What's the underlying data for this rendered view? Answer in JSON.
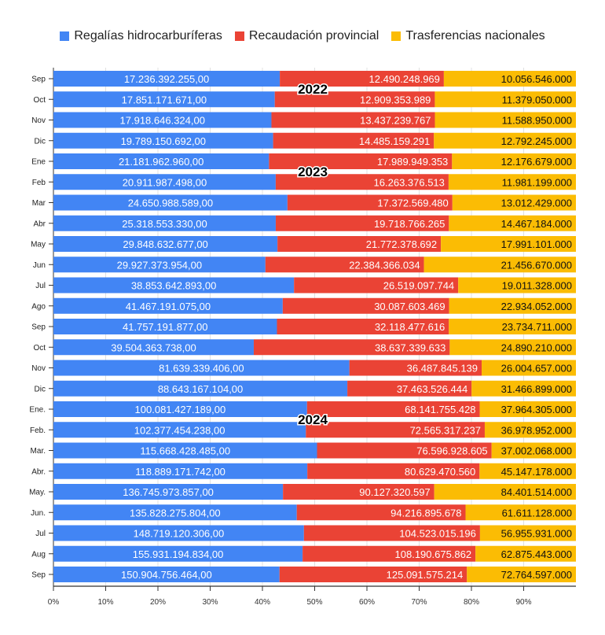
{
  "chart_data": {
    "type": "bar",
    "orientation": "horizontal",
    "stacking": "percent",
    "categories": [
      "Sep",
      "Oct",
      "Nov",
      "Dic",
      "Ene",
      "Feb",
      "Mar",
      "Abr",
      "May",
      "Jun",
      "Jul",
      "Ago",
      "Sep",
      "Oct",
      "Nov",
      "Dic",
      "Ene.",
      "Feb.",
      "Mar.",
      "Abr.",
      "May.",
      "Jun.",
      "Jul",
      "Aug",
      "Sep"
    ],
    "series": [
      {
        "name": "Regalías hidrocarburíferas",
        "color": "#4285f4",
        "label_suffix": ",00",
        "values": [
          17236392255,
          17851171671,
          17918646324,
          19789150692,
          21181962960,
          20911987498,
          24650988589,
          25318553330,
          29848632677,
          29927373954,
          38853642893,
          41467191075,
          41757191877,
          39504363738,
          81639339406,
          88643167104,
          100081427189,
          102377454238,
          115668428485,
          118889171742,
          136745973857,
          135828275804,
          148719120306,
          155931194834,
          150904756464
        ]
      },
      {
        "name": "Recaudación provincial",
        "color": "#ea4335",
        "label_suffix": "",
        "values": [
          12490248969,
          12909353989,
          13437239767,
          14485159291,
          17989949353,
          16263376513,
          17372569480,
          19718766265,
          21772378692,
          22384366034,
          26519097744,
          30087603469,
          32118477616,
          38637339633,
          36487845139,
          37463526444,
          68141755428,
          72565317237,
          76596928605,
          80629470560,
          90127320597,
          94216895678,
          104523015196,
          108190675862,
          125091575214
        ]
      },
      {
        "name": "Trasferencias nacionales",
        "color": "#fbbc04",
        "label_suffix": "",
        "values": [
          10056546000,
          11379050000,
          11588950000,
          12792245000,
          12176679000,
          11981199000,
          13012429000,
          14467184000,
          17991101000,
          21456670000,
          19011328000,
          22934052000,
          23734711000,
          24890210000,
          26004657000,
          31466899000,
          37964305000,
          36978952000,
          37002068000,
          45147178000,
          84401514000,
          61611128000,
          56955931000,
          62875443000,
          72764597000
        ]
      }
    ],
    "annotations": [
      {
        "text": "2022",
        "between_rows": [
          0,
          1
        ]
      },
      {
        "text": "2023",
        "between_rows": [
          4,
          5
        ]
      },
      {
        "text": "2024",
        "between_rows": [
          16,
          17
        ]
      }
    ],
    "x_ticks": [
      "0%",
      "10%",
      "20%",
      "30%",
      "40%",
      "50%",
      "60%",
      "70%",
      "80%",
      "90%"
    ],
    "xlim": [
      0,
      100
    ],
    "grid": true,
    "legend_position": "top",
    "title": "",
    "xlabel": "",
    "ylabel": ""
  }
}
